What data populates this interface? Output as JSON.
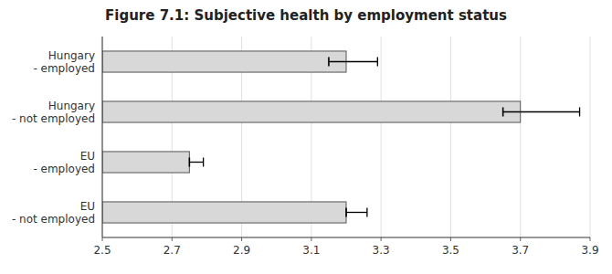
{
  "chart_data": {
    "type": "bar",
    "orientation": "horizontal",
    "title": "Figure 7.1: Subjective health by employment status",
    "categories": [
      "Hungary\n- employed",
      "Hungary\n- not employed",
      "EU\n- employed",
      "EU\n- not employed"
    ],
    "values": [
      3.2,
      3.7,
      2.75,
      3.2
    ],
    "error_center": [
      3.15,
      3.65,
      2.75,
      3.2
    ],
    "error_minus": [
      0.0,
      0.0,
      0.0,
      0.0
    ],
    "error_plus": [
      0.14,
      0.22,
      0.04,
      0.06
    ],
    "color": "#d8d8d8",
    "xlim": [
      2.5,
      3.9
    ],
    "xticks": [
      2.5,
      2.7,
      2.9,
      3.1,
      3.3,
      3.5,
      3.7,
      3.9
    ],
    "grid": true
  }
}
